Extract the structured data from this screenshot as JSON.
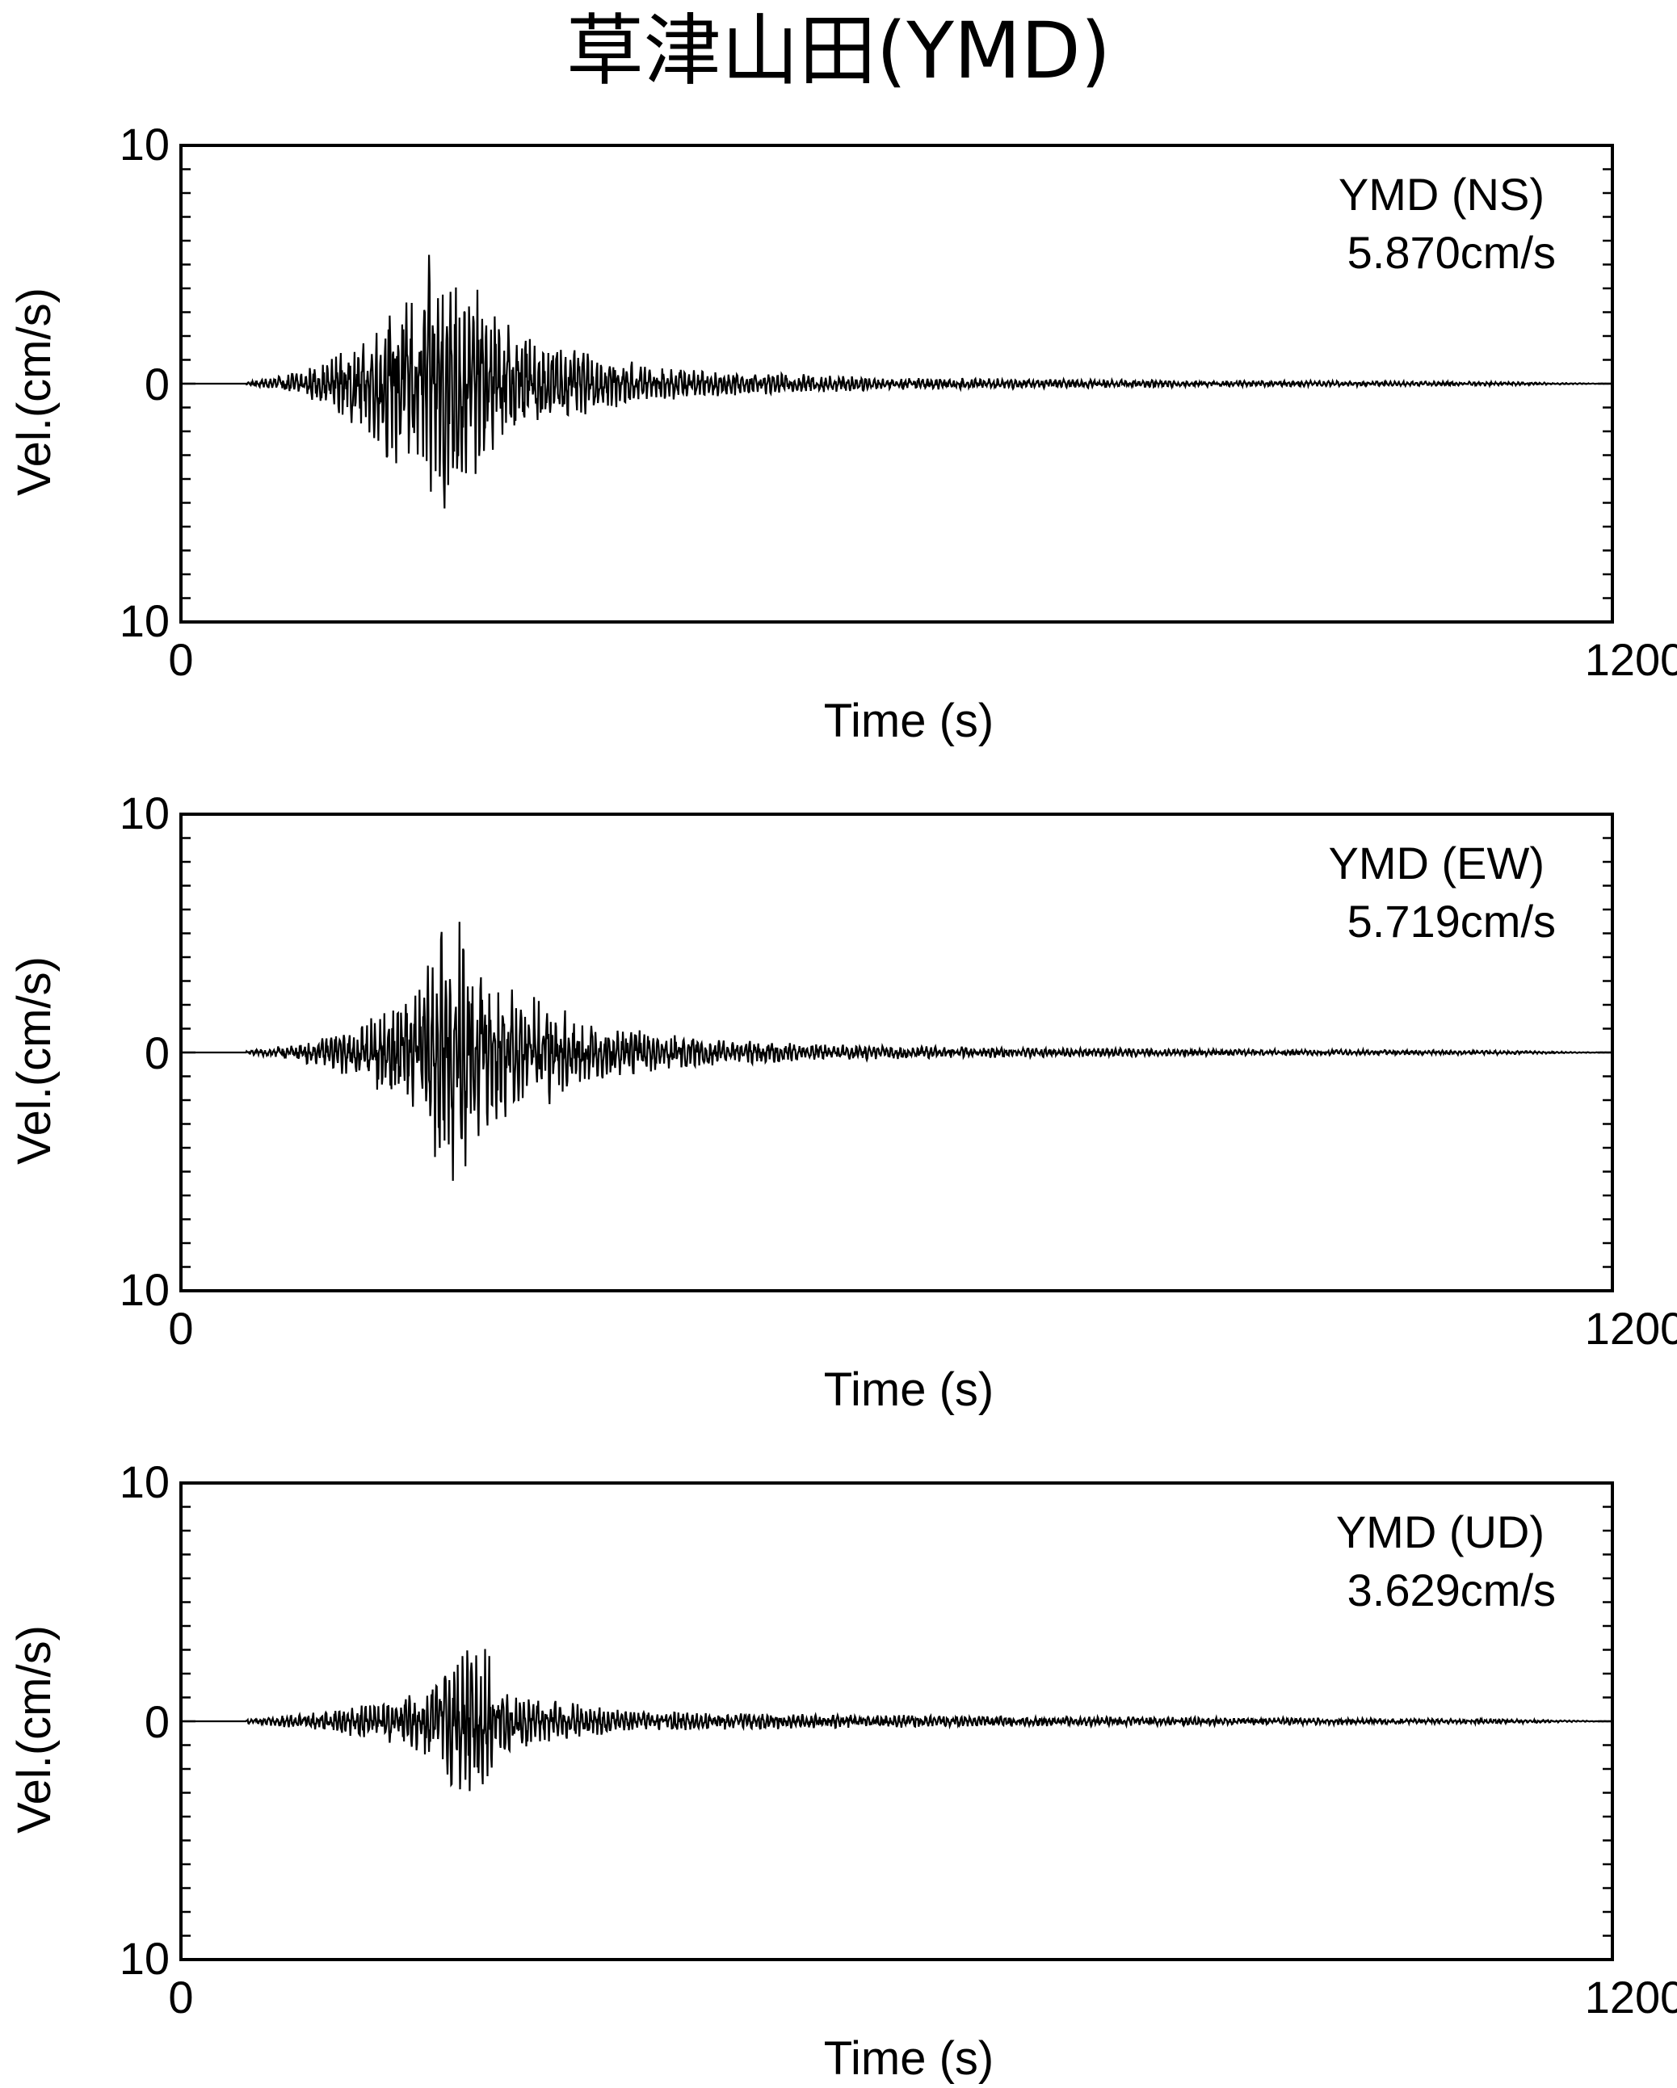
{
  "title": "草津山田(YMD)",
  "chart_data": [
    {
      "type": "line",
      "station_label": "YMD (NS)",
      "peak_label": "5.870cm/s",
      "xlabel": "Time (s)",
      "ylabel": "Vel.(cm/s)",
      "xlim": [
        0,
        1200
      ],
      "ylim": [
        -10,
        10
      ],
      "xtick_labels": [
        "0",
        "1200"
      ],
      "ytick_labels": [
        "10",
        "0",
        "10"
      ],
      "peak": 5.87,
      "onset": 75,
      "growth_end": 215,
      "decay": 0.0065,
      "series": [
        {
          "x": [
            0,
            60,
            90,
            120,
            140,
            160,
            180,
            200,
            215,
            225,
            240,
            260,
            280,
            300,
            330,
            360,
            400,
            450,
            500,
            600,
            700,
            800,
            900,
            1000,
            1100,
            1200
          ],
          "y": [
            0,
            0.1,
            0.4,
            -0.8,
            1.5,
            -2.2,
            3.5,
            -3.9,
            5.87,
            -4.9,
            4.0,
            -3.1,
            2.4,
            -1.8,
            1.3,
            -1.0,
            0.7,
            -0.5,
            0.4,
            -0.25,
            0.2,
            -0.15,
            0.12,
            -0.1,
            0.08,
            0
          ]
        }
      ]
    },
    {
      "type": "line",
      "station_label": "YMD (EW)",
      "peak_label": "5.719cm/s",
      "xlabel": "Time (s)",
      "ylabel": "Vel.(cm/s)",
      "xlim": [
        0,
        1200
      ],
      "ylim": [
        -10,
        10
      ],
      "xtick_labels": [
        "0",
        "1200"
      ],
      "ytick_labels": [
        "10",
        "0",
        "10"
      ],
      "peak": 5.719,
      "onset": 75,
      "growth_end": 235,
      "decay": 0.0065,
      "series": [
        {
          "x": [
            0,
            60,
            90,
            120,
            150,
            180,
            200,
            220,
            235,
            250,
            270,
            300,
            330,
            360,
            400,
            450,
            500,
            600,
            700,
            800,
            900,
            1000,
            1100,
            1200
          ],
          "y": [
            0,
            0.1,
            0.3,
            -0.6,
            1.2,
            -2.0,
            2.7,
            -5.2,
            5.719,
            -3.8,
            2.6,
            -2.2,
            1.5,
            -1.1,
            0.8,
            -0.5,
            0.4,
            -0.25,
            0.2,
            -0.15,
            0.12,
            -0.1,
            0.08,
            0
          ]
        }
      ]
    },
    {
      "type": "line",
      "station_label": "YMD (UD)",
      "peak_label": "3.629cm/s",
      "xlabel": "Time (s)",
      "ylabel": "Vel.(cm/s)",
      "xlim": [
        0,
        1200
      ],
      "ylim": [
        -10,
        10
      ],
      "xtick_labels": [
        "0",
        "1200"
      ],
      "ytick_labels": [
        "10",
        "0",
        "10"
      ],
      "peak": 3.629,
      "onset": 60,
      "growth_end": 230,
      "decay": 0.006,
      "series": [
        {
          "x": [
            0,
            60,
            100,
            140,
            170,
            200,
            220,
            230,
            245,
            255,
            270,
            300,
            330,
            360,
            400,
            450,
            500,
            600,
            700,
            800,
            900,
            1000,
            1100,
            1200
          ],
          "y": [
            0,
            0.1,
            0.3,
            -0.6,
            0.8,
            -1.3,
            2.0,
            3.629,
            -2.6,
            2.9,
            -1.5,
            0.9,
            -0.7,
            0.5,
            -0.4,
            0.35,
            -0.3,
            0.25,
            -0.2,
            0.18,
            -0.15,
            0.12,
            -0.1,
            0
          ]
        }
      ]
    }
  ]
}
